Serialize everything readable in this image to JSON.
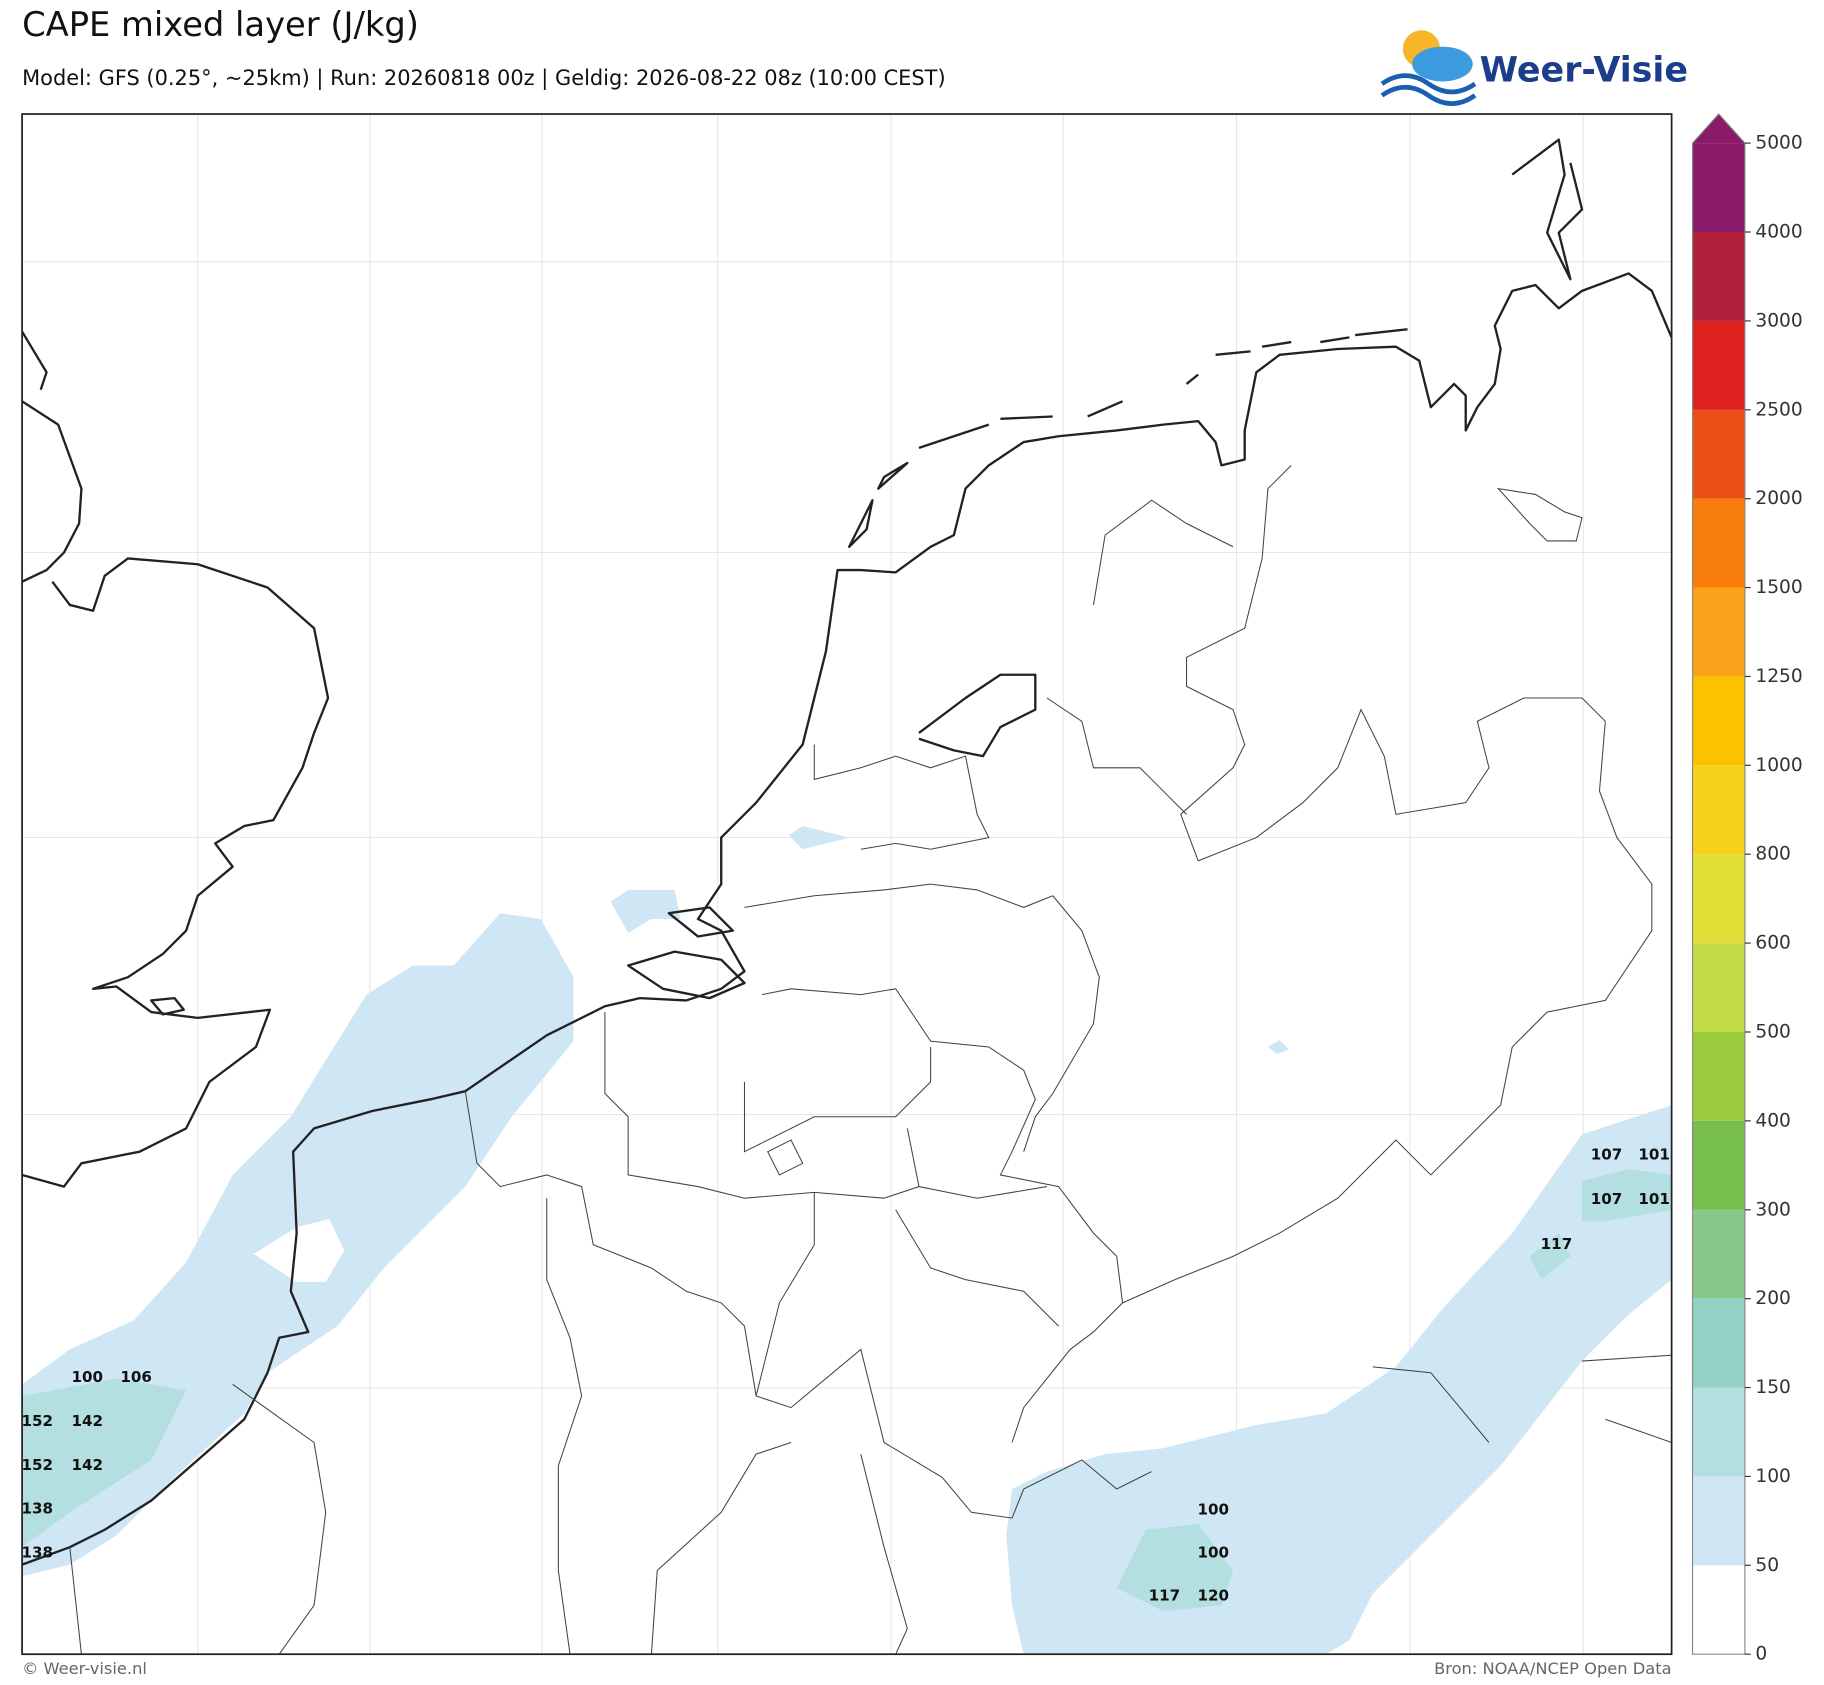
{
  "header": {
    "title": "CAPE mixed layer (J/kg)",
    "subtitle": "Model: GFS (0.25°, ~25km)  |  Run: 20260818 00z  |  Geldig: 2026-08-22 08z (10:00 CEST)"
  },
  "logo": {
    "text": "Weer-Visie"
  },
  "map": {
    "labels": [
      100,
      106,
      152,
      142,
      152,
      142,
      138,
      138,
      107,
      101,
      107,
      101,
      117,
      100,
      100,
      117,
      120
    ]
  },
  "colorbar": {
    "ticks": [
      0,
      50,
      100,
      150,
      200,
      300,
      400,
      500,
      600,
      800,
      1000,
      1250,
      1500,
      2000,
      2500,
      3000,
      4000,
      5000
    ],
    "colors": [
      "#ffffff",
      "#cfe6f5",
      "#b3dfe0",
      "#94d2c8",
      "#88c98a",
      "#76be4e",
      "#9acb3c",
      "#c3dc46",
      "#e1df37",
      "#f3d219",
      "#fbc200",
      "#fba21b",
      "#f97e0c",
      "#e94f16",
      "#dc211e",
      "#b21f3a",
      "#8a1a6a"
    ]
  },
  "footer": {
    "left": "© Weer-visie.nl",
    "right": "Bron: NOAA/NCEP Open Data"
  }
}
